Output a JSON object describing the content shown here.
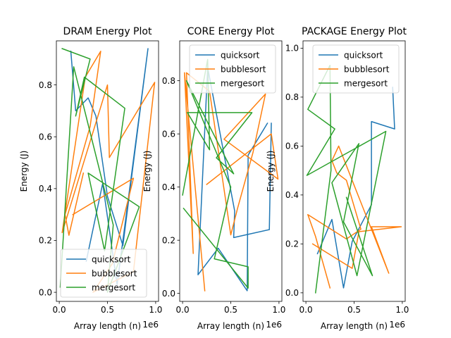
{
  "chart_data": [
    {
      "type": "line",
      "title": "DRAM Energy Plot",
      "xlabel": "Array length (n)",
      "ylabel": "Energy (J)",
      "x_offset_label": "1e6",
      "xlim": [
        -0.03,
        1.03
      ],
      "ylim": [
        -0.035,
        0.97
      ],
      "xticks": [
        0.0,
        0.5,
        1.0
      ],
      "xtick_labels": [
        "0.0",
        "0.5",
        "1.0"
      ],
      "yticks": [
        0.0,
        0.2,
        0.4,
        0.6,
        0.8
      ],
      "ytick_labels": [
        "0.0",
        "0.2",
        "0.4",
        "0.6",
        "0.8"
      ],
      "legend_position": "lower-right",
      "series": [
        {
          "name": "quicksort",
          "color": "#1f77b4",
          "x": [
            0.12,
            0.17,
            0.3,
            0.38,
            0.5,
            0.66,
            0.92,
            0.6,
            0.45,
            0.28
          ],
          "y": [
            0.93,
            0.7,
            0.75,
            0.68,
            0.37,
            0.18,
            0.94,
            0.03,
            0.42,
            0.12
          ]
        },
        {
          "name": "bubblesort",
          "color": "#ff7f0e",
          "x": [
            0.25,
            0.1,
            0.06,
            0.32,
            0.43,
            0.27,
            0.03,
            0.5,
            0.52,
            0.99,
            0.77,
            0.35,
            0.55,
            0.77,
            0.14
          ],
          "y": [
            0.46,
            0.22,
            0.3,
            0.64,
            0.93,
            0.83,
            0.23,
            0.8,
            0.52,
            0.81,
            0.08,
            0.0,
            0.11,
            0.44,
            0.3
          ]
        },
        {
          "name": "mergesort",
          "color": "#2ca02c",
          "x": [
            0.03,
            0.32,
            0.17,
            0.26,
            0.68,
            0.47,
            0.3,
            0.83,
            0.5,
            0.56,
            0.15,
            0.01
          ],
          "y": [
            0.94,
            0.9,
            0.68,
            0.83,
            0.71,
            0.16,
            0.46,
            0.33,
            0.0,
            0.26,
            0.87,
            0.02
          ]
        }
      ]
    },
    {
      "type": "line",
      "title": "CORE Energy Plot",
      "xlabel": "Array length (n)",
      "ylabel": "Energy (J)",
      "x_offset_label": "1e6",
      "xlim": [
        -0.03,
        1.03
      ],
      "ylim": [
        -0.03,
        0.95
      ],
      "xticks": [
        0.0,
        0.5,
        1.0
      ],
      "xtick_labels": [
        "0.0",
        "0.5",
        "1.0"
      ],
      "yticks": [
        0.0,
        0.2,
        0.4,
        0.6,
        0.8
      ],
      "ytick_labels": [
        "0.0",
        "0.2",
        "0.4",
        "0.6",
        "0.8"
      ],
      "legend_position": "upper-right",
      "series": [
        {
          "name": "quicksort",
          "color": "#1f77b4",
          "x": [
            0.88,
            0.68,
            0.67,
            0.37,
            0.16,
            0.26,
            0.54,
            0.53,
            0.9,
            0.92
          ],
          "y": [
            0.64,
            0.52,
            0.01,
            0.17,
            0.07,
            0.85,
            0.31,
            0.21,
            0.24,
            0.64
          ]
        },
        {
          "name": "bubblesort",
          "color": "#ff7f0e",
          "x": [
            0.23,
            0.02,
            0.11,
            0.04,
            0.28,
            0.5,
            0.57,
            0.73,
            0.86,
            0.43,
            0.99,
            0.92,
            0.25
          ],
          "y": [
            0.01,
            0.83,
            0.15,
            0.83,
            0.76,
            0.22,
            0.32,
            0.53,
            0.75,
            0.58,
            0.43,
            0.6,
            0.41
          ]
        },
        {
          "name": "mergesort",
          "color": "#2ca02c",
          "x": [
            0.0,
            0.26,
            0.28,
            0.05,
            0.72,
            0.35,
            0.53,
            0.04,
            0.5,
            0.33,
            0.68,
            0.68,
            0.01
          ],
          "y": [
            0.37,
            0.88,
            0.54,
            0.68,
            0.68,
            0.51,
            0.45,
            0.8,
            0.4,
            0.13,
            0.1,
            0.02,
            0.32
          ]
        }
      ]
    },
    {
      "type": "line",
      "title": "PACKAGE Energy Plot",
      "xlabel": "Array length (n)",
      "ylabel": "Energy (J)",
      "x_offset_label": "1e6",
      "xlim": [
        -0.03,
        1.03
      ],
      "ylim": [
        -0.035,
        1.03
      ],
      "xticks": [
        0.0,
        0.5,
        1.0
      ],
      "xtick_labels": [
        "0.0",
        "0.5",
        "1.0"
      ],
      "yticks": [
        0.0,
        0.2,
        0.4,
        0.6,
        0.8,
        1.0
      ],
      "ytick_labels": [
        "0.0",
        "0.2",
        "0.4",
        "0.6",
        "0.8",
        "1.0"
      ],
      "legend_position": "upper-right",
      "series": [
        {
          "name": "quicksort",
          "color": "#1f77b4",
          "x": [
            0.12,
            0.27,
            0.39,
            0.48,
            0.68,
            0.68,
            0.68,
            0.92,
            0.9
          ],
          "y": [
            0.16,
            0.3,
            0.02,
            0.21,
            0.36,
            0.7,
            0.7,
            0.67,
            0.84
          ]
        },
        {
          "name": "bubblesort",
          "color": "#ff7f0e",
          "x": [
            0.25,
            0.1,
            0.02,
            0.42,
            0.57,
            0.42,
            0.32,
            0.27,
            0.34,
            0.86,
            0.68,
            0.99,
            0.55,
            0.48,
            0.07
          ],
          "y": [
            0.02,
            0.23,
            0.32,
            0.22,
            0.26,
            0.46,
            0.49,
            0.54,
            0.6,
            0.08,
            0.27,
            0.27,
            0.25,
            0.1,
            0.2
          ]
        },
        {
          "name": "mergesort",
          "color": "#2ca02c",
          "x": [
            0.1,
            0.26,
            0.25,
            0.02,
            0.3,
            0.01,
            0.83,
            0.53,
            0.27,
            0.55,
            0.39,
            0.69,
            0.42
          ],
          "y": [
            0.0,
            0.5,
            0.93,
            0.75,
            0.67,
            0.48,
            0.66,
            0.07,
            0.45,
            0.61,
            0.29,
            0.07,
            0.39
          ]
        }
      ]
    }
  ]
}
